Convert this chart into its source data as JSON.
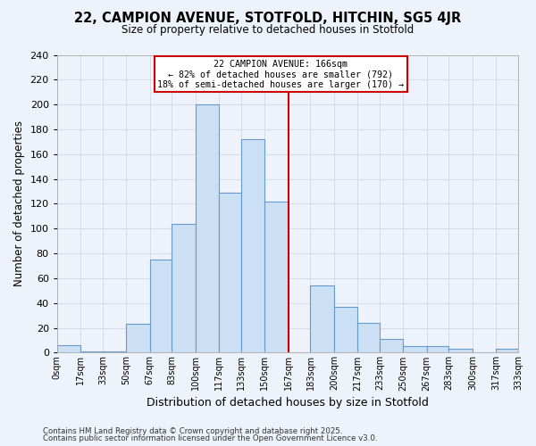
{
  "title": "22, CAMPION AVENUE, STOTFOLD, HITCHIN, SG5 4JR",
  "subtitle": "Size of property relative to detached houses in Stotfold",
  "xlabel": "Distribution of detached houses by size in Stotfold",
  "ylabel": "Number of detached properties",
  "bin_edges": [
    0,
    17,
    33,
    50,
    67,
    83,
    100,
    117,
    133,
    150,
    167,
    183,
    200,
    217,
    233,
    250,
    267,
    283,
    300,
    317,
    333
  ],
  "bin_labels": [
    "0sqm",
    "17sqm",
    "33sqm",
    "50sqm",
    "67sqm",
    "83sqm",
    "100sqm",
    "117sqm",
    "133sqm",
    "150sqm",
    "167sqm",
    "183sqm",
    "200sqm",
    "217sqm",
    "233sqm",
    "250sqm",
    "267sqm",
    "283sqm",
    "300sqm",
    "317sqm",
    "333sqm"
  ],
  "counts": [
    6,
    1,
    1,
    23,
    75,
    104,
    200,
    129,
    172,
    122,
    0,
    54,
    37,
    24,
    11,
    5,
    5,
    3,
    0,
    3
  ],
  "bar_facecolor": "#cce0f5",
  "bar_edgecolor": "#6699cc",
  "vline_x": 167,
  "vline_color": "#cc0000",
  "annotation_title": "22 CAMPION AVENUE: 166sqm",
  "annotation_line1": "← 82% of detached houses are smaller (792)",
  "annotation_line2": "18% of semi-detached houses are larger (170) →",
  "annotation_box_edgecolor": "#cc0000",
  "annotation_box_facecolor": "#ffffff",
  "ylim": [
    0,
    240
  ],
  "yticks": [
    0,
    20,
    40,
    60,
    80,
    100,
    120,
    140,
    160,
    180,
    200,
    220,
    240
  ],
  "grid_color": "#d0d8e8",
  "background_color": "#eef2fa",
  "footer1": "Contains HM Land Registry data © Crown copyright and database right 2025.",
  "footer2": "Contains public sector information licensed under the Open Government Licence v3.0."
}
